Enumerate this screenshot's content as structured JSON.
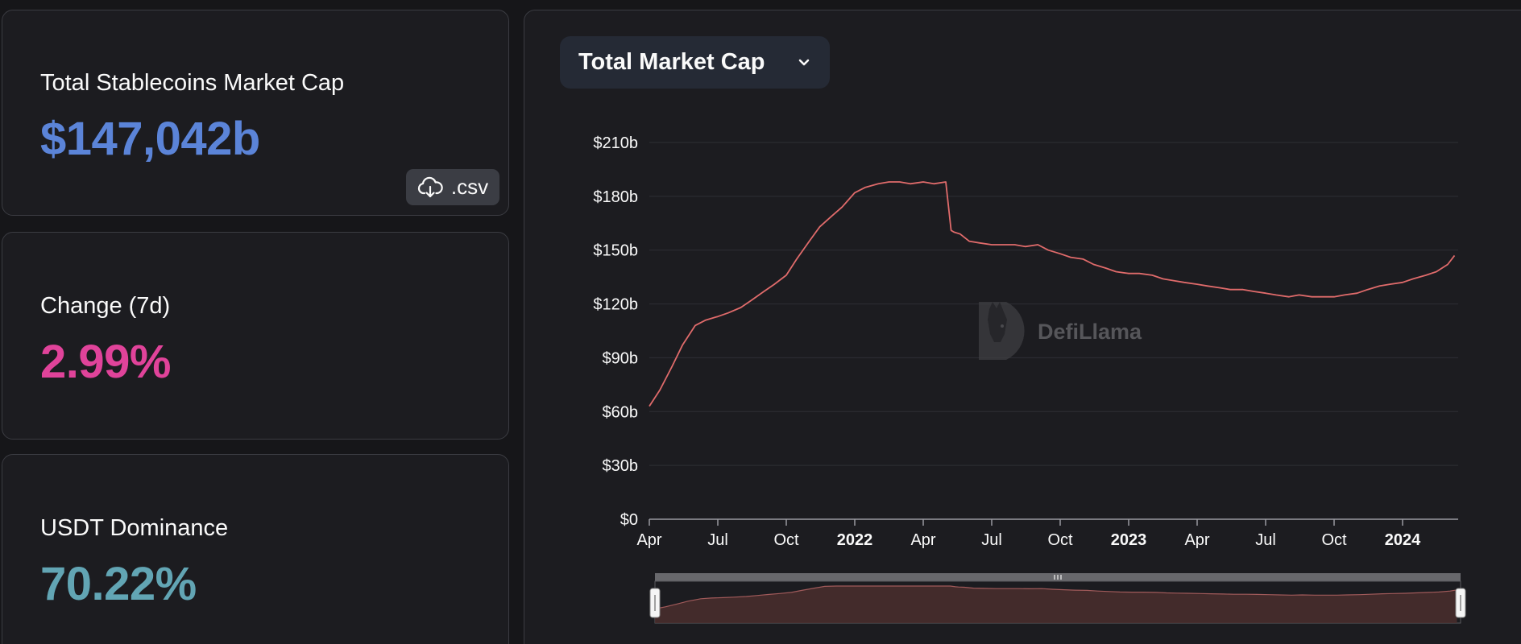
{
  "stats": {
    "market_cap": {
      "label": "Total Stablecoins Market Cap",
      "value": "$147,042b"
    },
    "change": {
      "label": "Change (7d)",
      "value": "2.99%"
    },
    "dominance": {
      "label": "USDT Dominance",
      "value": "70.22%"
    },
    "csv_label": ".csv"
  },
  "chart_selector": {
    "selected": "Total Market Cap"
  },
  "watermark": "DefiLlama",
  "colors": {
    "market_cap": "#5b84d8",
    "change": "#e0439a",
    "dominance": "#62a5b4",
    "line": "#e06b6b"
  },
  "chart_data": {
    "type": "line",
    "title": "",
    "xlabel": "",
    "ylabel": "",
    "y_ticks": [
      "$0",
      "$30b",
      "$60b",
      "$90b",
      "$120b",
      "$150b",
      "$180b",
      "$210b"
    ],
    "x_ticks": [
      {
        "label": "Apr",
        "bold": false
      },
      {
        "label": "Jul",
        "bold": false
      },
      {
        "label": "Oct",
        "bold": false
      },
      {
        "label": "2022",
        "bold": true
      },
      {
        "label": "Apr",
        "bold": false
      },
      {
        "label": "Jul",
        "bold": false
      },
      {
        "label": "Oct",
        "bold": false
      },
      {
        "label": "2023",
        "bold": true
      },
      {
        "label": "Apr",
        "bold": false
      },
      {
        "label": "Jul",
        "bold": false
      },
      {
        "label": "Oct",
        "bold": false
      },
      {
        "label": "2024",
        "bold": true
      }
    ],
    "ylim": [
      0,
      210
    ],
    "y_unit": "billion USD",
    "grid": true,
    "series": [
      {
        "name": "",
        "x": [
          "2021-04-01",
          "2021-04-15",
          "2021-05-01",
          "2021-05-15",
          "2021-06-01",
          "2021-06-15",
          "2021-07-01",
          "2021-07-15",
          "2021-08-01",
          "2021-08-15",
          "2021-09-01",
          "2021-09-15",
          "2021-10-01",
          "2021-10-15",
          "2021-11-01",
          "2021-11-15",
          "2021-12-01",
          "2021-12-15",
          "2022-01-01",
          "2022-01-15",
          "2022-02-01",
          "2022-02-15",
          "2022-03-01",
          "2022-03-15",
          "2022-04-01",
          "2022-04-15",
          "2022-05-01",
          "2022-05-08",
          "2022-05-12",
          "2022-05-20",
          "2022-06-01",
          "2022-06-15",
          "2022-07-01",
          "2022-07-15",
          "2022-08-01",
          "2022-08-15",
          "2022-09-01",
          "2022-09-15",
          "2022-10-01",
          "2022-10-15",
          "2022-11-01",
          "2022-11-15",
          "2022-12-01",
          "2022-12-15",
          "2023-01-01",
          "2023-01-15",
          "2023-02-01",
          "2023-02-15",
          "2023-03-01",
          "2023-03-15",
          "2023-04-01",
          "2023-04-15",
          "2023-05-01",
          "2023-05-15",
          "2023-06-01",
          "2023-06-15",
          "2023-07-01",
          "2023-07-15",
          "2023-08-01",
          "2023-08-15",
          "2023-09-01",
          "2023-09-15",
          "2023-10-01",
          "2023-10-15",
          "2023-11-01",
          "2023-11-15",
          "2023-12-01",
          "2023-12-15",
          "2024-01-01",
          "2024-01-15",
          "2024-02-01",
          "2024-02-15",
          "2024-03-01",
          "2024-03-10"
        ],
        "values": [
          63,
          72,
          85,
          97,
          108,
          111,
          113,
          115,
          118,
          122,
          127,
          131,
          136,
          145,
          155,
          163,
          169,
          174,
          182,
          185,
          187,
          188,
          188,
          187,
          188,
          187,
          188,
          161,
          160,
          159,
          155,
          154,
          153,
          153,
          153,
          152,
          153,
          150,
          148,
          146,
          145,
          142,
          140,
          138,
          137,
          137,
          136,
          134,
          133,
          132,
          131,
          130,
          129,
          128,
          128,
          127,
          126,
          125,
          124,
          125,
          124,
          124,
          124,
          125,
          126,
          128,
          130,
          131,
          132,
          134,
          136,
          138,
          142,
          147
        ]
      }
    ]
  }
}
